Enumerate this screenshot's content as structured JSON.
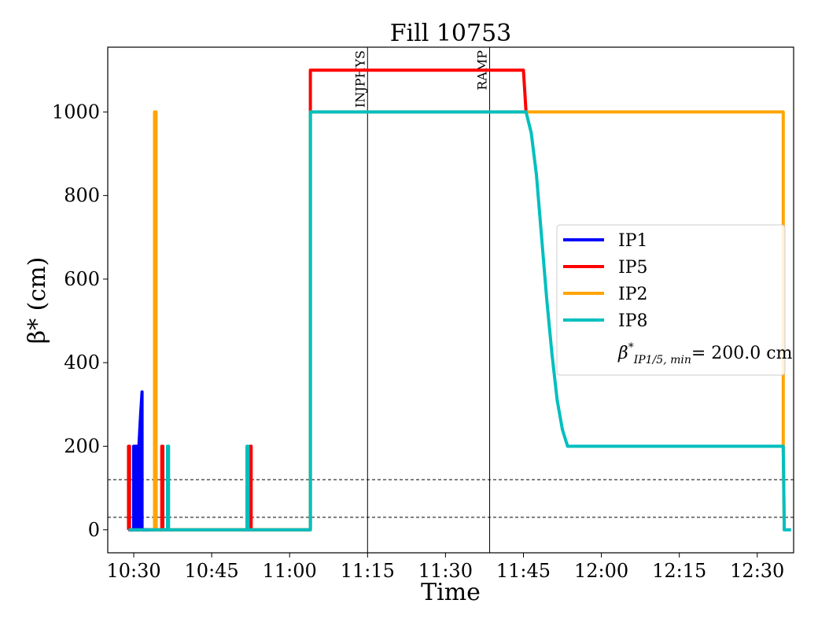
{
  "chart_data": {
    "type": "line",
    "title": "Fill 10753",
    "xlabel": "Time",
    "ylabel": "β* (cm)",
    "x_unit": "minutes",
    "xlim": [
      "10:25",
      "12:37"
    ],
    "ylim": [
      -55,
      1155
    ],
    "x_ticks": [
      "10:30",
      "10:45",
      "11:00",
      "11:15",
      "11:30",
      "11:45",
      "12:00",
      "12:15",
      "12:30"
    ],
    "y_ticks": [
      0,
      200,
      400,
      600,
      800,
      1000
    ],
    "grid": false,
    "legend_position": "center-right",
    "series": [
      {
        "name": "IP1",
        "color": "#0000ff",
        "points": [
          [
            "10:29",
            0
          ],
          [
            "10:30",
            0
          ],
          [
            "10:30",
            200
          ],
          [
            "10:30.3",
            200
          ],
          [
            "10:30.3",
            0
          ],
          [
            "10:30.5",
            0
          ],
          [
            "10:30.5",
            200
          ],
          [
            "10:30.7",
            200
          ],
          [
            "10:30.7",
            0
          ],
          [
            "10:31",
            0
          ],
          [
            "10:31",
            200
          ],
          [
            "10:31.3",
            270
          ],
          [
            "10:31.6",
            330
          ],
          [
            "10:31.6",
            0
          ],
          [
            "10:33",
            0
          ]
        ]
      },
      {
        "name": "IP5",
        "color": "#ff0000",
        "points": [
          [
            "10:29",
            0
          ],
          [
            "10:29",
            200
          ],
          [
            "10:29.2",
            200
          ],
          [
            "10:29.2",
            0
          ],
          [
            "10:34.2",
            0
          ],
          [
            "10:34.2",
            420
          ],
          [
            "10:34.3",
            0
          ],
          [
            "10:35.4",
            0
          ],
          [
            "10:35.4",
            200
          ],
          [
            "10:35.6",
            200
          ],
          [
            "10:35.6",
            0
          ],
          [
            "10:52.4",
            0
          ],
          [
            "10:52.4",
            200
          ],
          [
            "10:52.6",
            200
          ],
          [
            "10:52.6",
            0
          ],
          [
            "11:04",
            0
          ],
          [
            "11:04",
            1100
          ],
          [
            "11:45",
            1100
          ],
          [
            "11:45.5",
            1000
          ]
        ]
      },
      {
        "name": "IP2",
        "color": "#ffa500",
        "points": [
          [
            "10:34",
            0
          ],
          [
            "10:34",
            1000
          ],
          [
            "10:34.3",
            1000
          ],
          [
            "10:34.3",
            0
          ],
          [
            "11:04",
            0
          ],
          [
            "11:04",
            1000
          ],
          [
            "12:35",
            1000
          ],
          [
            "12:35",
            200
          ],
          [
            "12:35.2",
            0
          ]
        ]
      },
      {
        "name": "IP8",
        "color": "#00bfbf",
        "points": [
          [
            "10:29",
            0
          ],
          [
            "10:36.5",
            0
          ],
          [
            "10:36.5",
            200
          ],
          [
            "10:36.7",
            200
          ],
          [
            "10:36.7",
            0
          ],
          [
            "10:51.8",
            0
          ],
          [
            "10:51.8",
            200
          ],
          [
            "10:52",
            200
          ],
          [
            "10:52",
            0
          ],
          [
            "11:04",
            0
          ],
          [
            "11:04",
            1000
          ],
          [
            "11:45.5",
            1000
          ],
          [
            "11:46.5",
            950
          ],
          [
            "11:47.5",
            850
          ],
          [
            "11:48.5",
            700
          ],
          [
            "11:49.5",
            550
          ],
          [
            "11:50.5",
            420
          ],
          [
            "11:51.5",
            310
          ],
          [
            "11:52.5",
            240
          ],
          [
            "11:53.5",
            200
          ],
          [
            "12:35",
            200
          ],
          [
            "12:35.2",
            0
          ],
          [
            "12:36.5",
            0
          ]
        ]
      }
    ],
    "vlines": [
      {
        "x": "11:15",
        "label": "INJPHYS"
      },
      {
        "x": "11:38.5",
        "label": "RAMP"
      }
    ],
    "hlines": [
      120,
      30
    ],
    "legend_extra": {
      "label_main": "β",
      "label_sup": "*",
      "label_sub": "IP1/5, min",
      "label_value": "= 200.0 cm"
    }
  }
}
